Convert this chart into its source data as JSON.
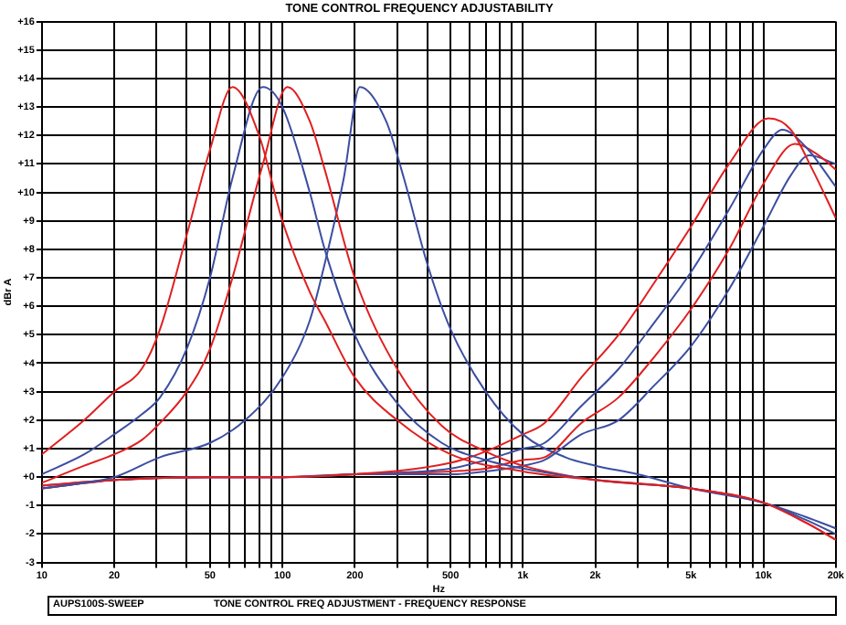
{
  "chart_data": {
    "type": "line",
    "title": "TONE CONTROL FREQUENCY ADJUSTABILITY",
    "xlabel": "Hz",
    "ylabel": "dBr A",
    "log": "x",
    "grid": true,
    "marker": "none",
    "line_style": "solid",
    "xlim": [
      10,
      20000
    ],
    "ylim": [
      -3,
      16
    ],
    "xticks": [
      10,
      20,
      {
        "value": 30,
        "label": null
      },
      {
        "value": 40,
        "label": null
      },
      50,
      {
        "value": 60,
        "label": null
      },
      {
        "value": 70,
        "label": null
      },
      {
        "value": 80,
        "label": null
      },
      {
        "value": 90,
        "label": null
      },
      100,
      200,
      {
        "value": 300,
        "label": null
      },
      {
        "value": 400,
        "label": null
      },
      500,
      {
        "value": 600,
        "label": null
      },
      {
        "value": 700,
        "label": null
      },
      {
        "value": 800,
        "label": null
      },
      {
        "value": 900,
        "label": null
      },
      {
        "value": 1000,
        "label": "1k"
      },
      {
        "value": 2000,
        "label": "2k"
      },
      {
        "value": 3000,
        "label": null
      },
      {
        "value": 4000,
        "label": null
      },
      {
        "value": 5000,
        "label": "5k"
      },
      {
        "value": 6000,
        "label": null
      },
      {
        "value": 7000,
        "label": null
      },
      {
        "value": 8000,
        "label": null
      },
      {
        "value": 9000,
        "label": null
      },
      {
        "value": 10000,
        "label": "10k"
      },
      {
        "value": 20000,
        "label": "20k"
      }
    ],
    "yticks": [
      {
        "value": -3,
        "label": "-3"
      },
      {
        "value": -2,
        "label": "-2"
      },
      {
        "value": -1,
        "label": "-1"
      },
      {
        "value": 0,
        "label": "+0"
      },
      {
        "value": 1,
        "label": "+1"
      },
      {
        "value": 2,
        "label": "+2"
      },
      {
        "value": 3,
        "label": "+3"
      },
      {
        "value": 4,
        "label": "+4"
      },
      {
        "value": 5,
        "label": "+5"
      },
      {
        "value": 6,
        "label": "+6"
      },
      {
        "value": 7,
        "label": "+7"
      },
      {
        "value": 8,
        "label": "+8"
      },
      {
        "value": 9,
        "label": "+9"
      },
      {
        "value": 10,
        "label": "+10"
      },
      {
        "value": 11,
        "label": "+11"
      },
      {
        "value": 12,
        "label": "+12"
      },
      {
        "value": 13,
        "label": "+13"
      },
      {
        "value": 14,
        "label": "+14"
      },
      {
        "value": 15,
        "label": "+15"
      },
      {
        "value": 16,
        "label": "+16"
      }
    ],
    "annotations": [
      "AUPS100S-SWEEP",
      "TONE CONTROL FREQ ADJUSTMENT - FREQUENCY RESPONSE"
    ],
    "series": [
      {
        "color": "#e02020",
        "x": [
          10,
          15,
          20,
          26,
          31,
          40,
          50,
          62,
          80,
          100,
          130,
          150,
          200,
          300,
          500,
          1000,
          2000,
          5000,
          10000,
          15000,
          20000
        ],
        "values": [
          0.8,
          2.0,
          3.0,
          3.8,
          5.2,
          8.5,
          11.5,
          13.7,
          12.0,
          9.0,
          6.5,
          5.5,
          3.5,
          2.0,
          0.8,
          0.2,
          -0.1,
          -0.4,
          -0.9,
          -1.6,
          -2.2
        ]
      },
      {
        "color": "#3c4ea0",
        "x": [
          10,
          15,
          20,
          26,
          31,
          40,
          50,
          62,
          83,
          100,
          130,
          150,
          200,
          300,
          460,
          700,
          1000,
          2000,
          5000,
          10000,
          15000,
          20000
        ],
        "values": [
          0.1,
          0.8,
          1.5,
          2.2,
          2.8,
          4.5,
          7.0,
          10.5,
          13.7,
          13.0,
          10.0,
          8.0,
          5.0,
          2.6,
          1.2,
          0.6,
          0.3,
          -0.1,
          -0.4,
          -0.9,
          -1.5,
          -2.0
        ]
      },
      {
        "color": "#e02020",
        "x": [
          10,
          15,
          20,
          26,
          31,
          40,
          50,
          62,
          83,
          105,
          130,
          150,
          200,
          300,
          460,
          700,
          1000,
          2000,
          5000,
          10000,
          15000,
          20000
        ],
        "values": [
          -0.2,
          0.4,
          0.8,
          1.3,
          1.9,
          3.0,
          4.5,
          7.0,
          11.0,
          13.7,
          12.5,
          10.8,
          7.0,
          3.8,
          1.8,
          0.9,
          0.4,
          -0.1,
          -0.4,
          -0.9,
          -1.6,
          -2.2
        ]
      },
      {
        "color": "#3c4ea0",
        "x": [
          10,
          15,
          20,
          31,
          50,
          70,
          100,
          130,
          150,
          180,
          210,
          270,
          320,
          400,
          500,
          700,
          1000,
          1500,
          2000,
          3000,
          5000,
          10000,
          15000,
          20000
        ],
        "values": [
          -0.4,
          -0.2,
          0.0,
          0.7,
          1.2,
          2.0,
          3.5,
          5.5,
          7.5,
          10.5,
          13.7,
          12.5,
          10.5,
          7.5,
          5.2,
          3.0,
          1.5,
          0.7,
          0.4,
          0.1,
          -0.4,
          -0.9,
          -1.4,
          -1.8
        ]
      },
      {
        "color": "#e02020",
        "x": [
          10,
          20,
          50,
          100,
          200,
          500,
          700,
          1000,
          1230,
          1750,
          2500,
          3500,
          5000,
          7200,
          10500,
          13000,
          16000,
          20000
        ],
        "values": [
          -0.3,
          -0.1,
          0,
          0,
          0.1,
          0.5,
          0.9,
          1.5,
          1.9,
          3.5,
          5.0,
          6.8,
          8.8,
          11.0,
          12.6,
          12.2,
          10.8,
          9.1
        ]
      },
      {
        "color": "#3c4ea0",
        "x": [
          10,
          20,
          50,
          100,
          200,
          500,
          700,
          1000,
          1230,
          1750,
          2500,
          3500,
          5000,
          7200,
          10000,
          12000,
          15000,
          20000
        ],
        "values": [
          -0.3,
          -0.1,
          0,
          0,
          0.1,
          0.3,
          0.6,
          1.0,
          1.2,
          2.5,
          3.8,
          5.4,
          7.2,
          9.4,
          11.5,
          12.2,
          11.6,
          10.2
        ]
      },
      {
        "color": "#e02020",
        "x": [
          10,
          20,
          50,
          100,
          200,
          500,
          700,
          1000,
          1230,
          1750,
          2500,
          3500,
          5000,
          7200,
          10000,
          13500,
          17000,
          20000
        ],
        "values": [
          -0.4,
          -0.1,
          0,
          0,
          0.1,
          0.2,
          0.3,
          0.6,
          0.7,
          1.9,
          2.8,
          4.2,
          5.9,
          8.0,
          10.3,
          11.7,
          11.3,
          10.8
        ]
      },
      {
        "color": "#3c4ea0",
        "x": [
          10,
          20,
          50,
          100,
          200,
          500,
          700,
          1000,
          1230,
          1750,
          2500,
          3500,
          5000,
          7200,
          10000,
          13000,
          15500,
          20000
        ],
        "values": [
          -0.4,
          -0.1,
          0,
          0,
          0.1,
          0.1,
          0.2,
          0.4,
          0.6,
          1.5,
          2.0,
          3.2,
          4.6,
          6.6,
          8.8,
          10.6,
          11.3,
          11.0
        ]
      }
    ]
  }
}
